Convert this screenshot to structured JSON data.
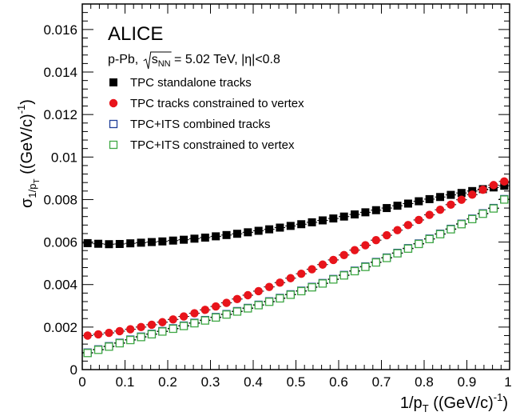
{
  "colors": {
    "tpc_standalone": "#000000",
    "tpc_constrained": "#e8141b",
    "tpc_its_combined": "#1f3f99",
    "tpc_its_constrained": "#3fa844"
  },
  "annotations": {
    "experiment": "ALICE",
    "system_prefix": "p-Pb, ",
    "sqrt_s": "s",
    "sqrt_s_sub": "NN",
    "energy": " = 5.02 TeV, |η|<0.8"
  },
  "chart_data": {
    "type": "scatter",
    "title": "",
    "xlabel": "1/p_T ((GeV/c)^-1)",
    "xlabel_parts": {
      "main": "1/p",
      "sub": "T",
      "unit": " ((GeV/c)",
      "sup": "-1",
      "close": ")"
    },
    "ylabel": "σ_1/p_T ((GeV/c)^-1)",
    "ylabel_parts": {
      "sigma": "σ",
      "sub": "1/p",
      "subsub": "T",
      "unit": " ((GeV/c)",
      "sup": "-1",
      "close": ")"
    },
    "xlim": [
      0,
      1.0
    ],
    "ylim": [
      0,
      0.0172
    ],
    "xticks": [
      0,
      0.1,
      0.2,
      0.3,
      0.4,
      0.5,
      0.6,
      0.7,
      0.8,
      0.9
    ],
    "xtick_labels": [
      "0",
      "0.1",
      "0.2",
      "0.3",
      "0.4",
      "0.5",
      "0.6",
      "0.7",
      "0.8",
      "0.9",
      "1"
    ],
    "yticks": [
      0,
      0.002,
      0.004,
      0.006,
      0.008,
      0.01,
      0.012,
      0.014,
      0.016
    ],
    "ytick_labels": [
      "0",
      "0.002",
      "0.004",
      "0.006",
      "0.008",
      "0.01",
      "0.012",
      "0.014",
      "0.016"
    ],
    "grid": false,
    "legend_position": "top-left",
    "x": [
      0.0125,
      0.0375,
      0.0625,
      0.0875,
      0.1125,
      0.1375,
      0.1625,
      0.1875,
      0.2125,
      0.2375,
      0.2625,
      0.2875,
      0.3125,
      0.3375,
      0.3625,
      0.3875,
      0.4125,
      0.4375,
      0.4625,
      0.4875,
      0.5125,
      0.5375,
      0.5625,
      0.5875,
      0.6125,
      0.6375,
      0.6625,
      0.6875,
      0.7125,
      0.7375,
      0.7625,
      0.7875,
      0.8125,
      0.8375,
      0.8625,
      0.8875,
      0.9125,
      0.9375,
      0.9625,
      0.9875
    ],
    "series": [
      {
        "name": "TPC standalone tracks",
        "marker": "filled-square",
        "color_key": "tpc_standalone",
        "values": [
          0.00595,
          0.00592,
          0.0059,
          0.00591,
          0.00594,
          0.00597,
          0.006,
          0.00603,
          0.00607,
          0.00611,
          0.00616,
          0.00621,
          0.00627,
          0.00633,
          0.00639,
          0.00646,
          0.00653,
          0.0066,
          0.00668,
          0.00676,
          0.00684,
          0.00693,
          0.00702,
          0.00711,
          0.0072,
          0.0073,
          0.0074,
          0.0075,
          0.0076,
          0.00771,
          0.00781,
          0.00792,
          0.00802,
          0.00812,
          0.00822,
          0.00831,
          0.0084,
          0.00849,
          0.00857,
          0.00865
        ]
      },
      {
        "name": "TPC tracks constrained to vertex",
        "marker": "filled-circle",
        "color_key": "tpc_constrained",
        "values": [
          0.0016,
          0.00166,
          0.00173,
          0.00181,
          0.0019,
          0.002,
          0.00211,
          0.00223,
          0.00236,
          0.0025,
          0.00265,
          0.00281,
          0.00297,
          0.00314,
          0.00332,
          0.0035,
          0.00369,
          0.00389,
          0.00409,
          0.0043,
          0.00451,
          0.00472,
          0.00494,
          0.00516,
          0.00539,
          0.00562,
          0.00585,
          0.00609,
          0.00632,
          0.00656,
          0.0068,
          0.00704,
          0.00728,
          0.00752,
          0.00776,
          0.00799,
          0.00823,
          0.00846,
          0.00868,
          0.00885
        ]
      },
      {
        "name": "TPC+ITS combined tracks",
        "marker": "open-square",
        "color_key": "tpc_its_combined",
        "values": [
          0.0008,
          0.00095,
          0.0011,
          0.00126,
          0.00141,
          0.00155,
          0.00168,
          0.00181,
          0.00194,
          0.00207,
          0.0022,
          0.00233,
          0.00247,
          0.00261,
          0.00275,
          0.0029,
          0.00305,
          0.00321,
          0.00337,
          0.00354,
          0.00371,
          0.00389,
          0.00407,
          0.00426,
          0.00445,
          0.00465,
          0.00485,
          0.00506,
          0.00527,
          0.00549,
          0.00571,
          0.00593,
          0.00616,
          0.00639,
          0.00662,
          0.00686,
          0.0071,
          0.00735,
          0.0076,
          0.00802
        ]
      },
      {
        "name": "TPC+ITS constrained to vertex",
        "marker": "open-square",
        "color_key": "tpc_its_constrained",
        "values": [
          0.00078,
          0.00093,
          0.00108,
          0.00124,
          0.00139,
          0.00153,
          0.00166,
          0.00179,
          0.00192,
          0.00205,
          0.00218,
          0.00231,
          0.00245,
          0.00259,
          0.00273,
          0.00288,
          0.00303,
          0.00319,
          0.00335,
          0.00352,
          0.00369,
          0.00387,
          0.00405,
          0.00424,
          0.00443,
          0.00463,
          0.00483,
          0.00504,
          0.00525,
          0.00547,
          0.00569,
          0.00591,
          0.00614,
          0.00637,
          0.0066,
          0.00684,
          0.00708,
          0.00733,
          0.00758,
          0.008
        ]
      }
    ]
  }
}
